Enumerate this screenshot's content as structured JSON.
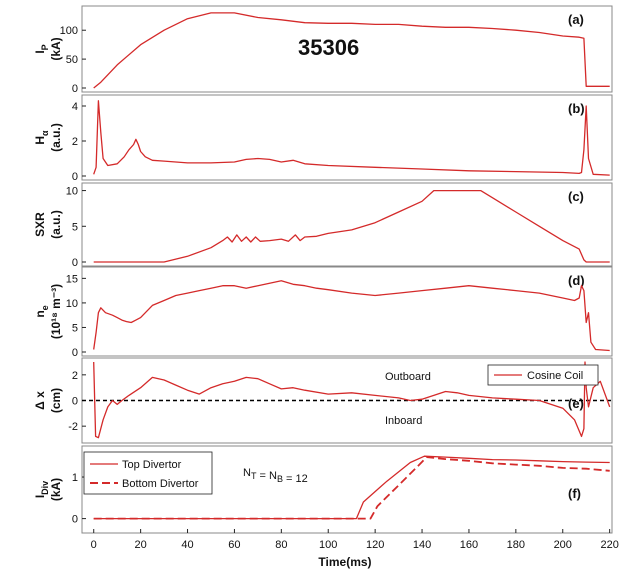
{
  "figure": {
    "shot_number": "35306",
    "xlabel": "Time(ms)",
    "x_ticks": [
      0,
      20,
      40,
      60,
      80,
      100,
      120,
      140,
      160,
      180,
      200,
      220
    ],
    "xlim": [
      -5,
      221
    ],
    "colors": {
      "trace": "#d42a2a",
      "axis": "#222222",
      "frame": "#888888",
      "zero_line": "#000000"
    }
  },
  "chart_data": [
    {
      "type": "line",
      "panel": "(a)",
      "ylabel_main": "I",
      "ylabel_sub": "P",
      "ylabel_unit": "(kA)",
      "yticks": [
        0,
        50,
        100
      ],
      "ylim": [
        0,
        135
      ],
      "series": [
        {
          "values": [
            [
              0,
              0
            ],
            [
              3,
              10
            ],
            [
              10,
              40
            ],
            [
              20,
              75
            ],
            [
              30,
              100
            ],
            [
              40,
              120
            ],
            [
              50,
              130
            ],
            [
              60,
              130
            ],
            [
              70,
              122
            ],
            [
              80,
              118
            ],
            [
              90,
              113
            ],
            [
              100,
              112
            ],
            [
              110,
              112
            ],
            [
              120,
              110
            ],
            [
              130,
              110
            ],
            [
              140,
              107
            ],
            [
              150,
              105
            ],
            [
              160,
              105
            ],
            [
              170,
              103
            ],
            [
              180,
              100
            ],
            [
              190,
              96
            ],
            [
              200,
              90
            ],
            [
              207,
              88
            ],
            [
              209,
              86
            ],
            [
              210,
              3
            ],
            [
              220,
              3
            ]
          ]
        }
      ]
    },
    {
      "type": "line",
      "panel": "(b)",
      "ylabel_main": "H",
      "ylabel_sub": "α",
      "ylabel_unit": "(a.u.)",
      "yticks": [
        0,
        2,
        4
      ],
      "ylim": [
        0,
        4.4
      ],
      "series": [
        {
          "values": [
            [
              0,
              0.1
            ],
            [
              1,
              0.5
            ],
            [
              2,
              4.3
            ],
            [
              3,
              2.5
            ],
            [
              4,
              1.0
            ],
            [
              6,
              0.6
            ],
            [
              10,
              0.7
            ],
            [
              13,
              1.1
            ],
            [
              15,
              1.5
            ],
            [
              17,
              1.8
            ],
            [
              18,
              2.1
            ],
            [
              19,
              1.8
            ],
            [
              20,
              1.4
            ],
            [
              22,
              1.1
            ],
            [
              25,
              0.9
            ],
            [
              30,
              0.85
            ],
            [
              40,
              0.75
            ],
            [
              50,
              0.75
            ],
            [
              60,
              0.8
            ],
            [
              65,
              0.95
            ],
            [
              70,
              1.0
            ],
            [
              75,
              0.95
            ],
            [
              80,
              0.8
            ],
            [
              85,
              0.9
            ],
            [
              90,
              0.7
            ],
            [
              100,
              0.6
            ],
            [
              120,
              0.5
            ],
            [
              140,
              0.4
            ],
            [
              160,
              0.3
            ],
            [
              180,
              0.25
            ],
            [
              200,
              0.2
            ],
            [
              207,
              0.15
            ],
            [
              208,
              0.2
            ],
            [
              209,
              1.5
            ],
            [
              210,
              4.0
            ],
            [
              211,
              1.0
            ],
            [
              213,
              0.1
            ],
            [
              220,
              0.05
            ]
          ]
        }
      ]
    },
    {
      "type": "line",
      "panel": "(c)",
      "ylabel_main": "SXR",
      "ylabel_sub": "",
      "ylabel_unit": "(a.u.)",
      "yticks": [
        0,
        5,
        10
      ],
      "ylim": [
        0,
        10.5
      ],
      "series": [
        {
          "values": [
            [
              0,
              0
            ],
            [
              20,
              0
            ],
            [
              30,
              0
            ],
            [
              40,
              0.8
            ],
            [
              50,
              2.0
            ],
            [
              55,
              3.0
            ],
            [
              57,
              3.5
            ],
            [
              59,
              2.8
            ],
            [
              61,
              3.8
            ],
            [
              63,
              2.9
            ],
            [
              65,
              3.5
            ],
            [
              67,
              2.8
            ],
            [
              69,
              3.5
            ],
            [
              71,
              2.9
            ],
            [
              75,
              3.0
            ],
            [
              80,
              3.2
            ],
            [
              83,
              2.9
            ],
            [
              86,
              3.8
            ],
            [
              88,
              3.0
            ],
            [
              90,
              3.5
            ],
            [
              95,
              3.6
            ],
            [
              100,
              4.0
            ],
            [
              110,
              4.5
            ],
            [
              120,
              5.5
            ],
            [
              130,
              7.0
            ],
            [
              140,
              8.5
            ],
            [
              145,
              10
            ],
            [
              150,
              10
            ],
            [
              160,
              10
            ],
            [
              165,
              10
            ],
            [
              170,
              9.0
            ],
            [
              180,
              7.0
            ],
            [
              190,
              5.0
            ],
            [
              200,
              3.0
            ],
            [
              207,
              1.8
            ],
            [
              209,
              0.3
            ],
            [
              210,
              0
            ],
            [
              220,
              0
            ]
          ]
        }
      ]
    },
    {
      "type": "line",
      "panel": "(d)",
      "ylabel_main": "n",
      "ylabel_sub": "e",
      "ylabel_unit": "(10¹⁸ m⁻³)",
      "yticks": [
        0,
        5,
        10,
        15
      ],
      "ylim": [
        0,
        16.5
      ],
      "series": [
        {
          "values": [
            [
              0,
              0.5
            ],
            [
              1,
              4
            ],
            [
              2,
              8
            ],
            [
              3,
              9
            ],
            [
              5,
              8
            ],
            [
              8,
              7.5
            ],
            [
              10,
              7
            ],
            [
              12,
              6.5
            ],
            [
              14,
              6.2
            ],
            [
              16,
              6.0
            ],
            [
              18,
              6.5
            ],
            [
              20,
              7.0
            ],
            [
              25,
              9.5
            ],
            [
              30,
              10.5
            ],
            [
              35,
              11.5
            ],
            [
              40,
              12
            ],
            [
              45,
              12.5
            ],
            [
              50,
              13
            ],
            [
              55,
              13.5
            ],
            [
              60,
              13.5
            ],
            [
              65,
              13
            ],
            [
              70,
              13.5
            ],
            [
              75,
              14
            ],
            [
              80,
              14.5
            ],
            [
              85,
              13.8
            ],
            [
              90,
              13.5
            ],
            [
              95,
              13
            ],
            [
              100,
              12.7
            ],
            [
              110,
              12
            ],
            [
              120,
              11.5
            ],
            [
              130,
              12
            ],
            [
              140,
              12.5
            ],
            [
              150,
              13
            ],
            [
              160,
              13.5
            ],
            [
              170,
              13
            ],
            [
              180,
              12.5
            ],
            [
              190,
              12
            ],
            [
              200,
              11
            ],
            [
              205,
              10.5
            ],
            [
              207,
              11
            ],
            [
              208,
              13.5
            ],
            [
              209,
              12.5
            ],
            [
              210,
              6.0
            ],
            [
              211,
              8.0
            ],
            [
              212,
              2.0
            ],
            [
              214,
              0.5
            ],
            [
              220,
              0.3
            ]
          ]
        }
      ]
    },
    {
      "type": "line",
      "panel": "(e)",
      "ylabel_main": "Δ x",
      "ylabel_sub": "",
      "ylabel_unit": "(cm)",
      "yticks": [
        -2,
        0,
        2
      ],
      "ylim": [
        -3,
        3
      ],
      "legend": "Cosine Coil",
      "annotation_top": "Outboard",
      "annotation_bottom": "Inboard",
      "zero_line": true,
      "series": [
        {
          "name": "Cosine Coil",
          "values": [
            [
              0,
              3
            ],
            [
              0.8,
              -2.8
            ],
            [
              2,
              -2.9
            ],
            [
              4,
              -1.5
            ],
            [
              6,
              -0.5
            ],
            [
              8,
              0
            ],
            [
              10,
              -0.3
            ],
            [
              12,
              0
            ],
            [
              15,
              0.4
            ],
            [
              20,
              1.0
            ],
            [
              25,
              1.8
            ],
            [
              30,
              1.6
            ],
            [
              35,
              1.2
            ],
            [
              40,
              0.8
            ],
            [
              45,
              0.5
            ],
            [
              50,
              1.0
            ],
            [
              55,
              1.3
            ],
            [
              60,
              1.5
            ],
            [
              65,
              1.8
            ],
            [
              70,
              1.7
            ],
            [
              75,
              1.3
            ],
            [
              80,
              0.9
            ],
            [
              85,
              1.0
            ],
            [
              90,
              0.8
            ],
            [
              100,
              0.5
            ],
            [
              110,
              0.6
            ],
            [
              120,
              0.4
            ],
            [
              130,
              0.2
            ],
            [
              135,
              0
            ],
            [
              140,
              0.1
            ],
            [
              145,
              0.4
            ],
            [
              150,
              0.7
            ],
            [
              155,
              0.6
            ],
            [
              160,
              0.4
            ],
            [
              170,
              0.2
            ],
            [
              180,
              0.1
            ],
            [
              190,
              0
            ],
            [
              200,
              -0.6
            ],
            [
              205,
              -1.5
            ],
            [
              208,
              -2.8
            ],
            [
              209,
              -2.2
            ],
            [
              209.5,
              3
            ],
            [
              210,
              1.0
            ],
            [
              211,
              -0.5
            ],
            [
              213,
              1.0
            ],
            [
              216,
              1.5
            ],
            [
              220,
              -0.5
            ]
          ]
        }
      ]
    },
    {
      "type": "line",
      "panel": "(f)",
      "ylabel_main": "I",
      "ylabel_sub": "Div",
      "ylabel_unit": "(kA)",
      "yticks": [
        0,
        1
      ],
      "ylim": [
        -0.25,
        1.65
      ],
      "annotation": "N_T = N_B = 12",
      "series": [
        {
          "name": "Top Divertor",
          "dash": "solid",
          "values": [
            [
              0,
              0
            ],
            [
              112,
              0
            ],
            [
              115,
              0.4
            ],
            [
              125,
              0.9
            ],
            [
              135,
              1.35
            ],
            [
              141,
              1.5
            ],
            [
              150,
              1.48
            ],
            [
              160,
              1.45
            ],
            [
              170,
              1.42
            ],
            [
              180,
              1.41
            ],
            [
              190,
              1.39
            ],
            [
              200,
              1.37
            ],
            [
              210,
              1.36
            ],
            [
              220,
              1.35
            ]
          ]
        },
        {
          "name": "Bottom Divertor",
          "dash": "dashed",
          "values": [
            [
              0,
              0
            ],
            [
              118,
              0
            ],
            [
              121,
              0.3
            ],
            [
              130,
              0.8
            ],
            [
              138,
              1.25
            ],
            [
              142,
              1.48
            ],
            [
              150,
              1.43
            ],
            [
              160,
              1.39
            ],
            [
              170,
              1.33
            ],
            [
              180,
              1.3
            ],
            [
              190,
              1.27
            ],
            [
              200,
              1.22
            ],
            [
              210,
              1.2
            ],
            [
              220,
              1.15
            ]
          ]
        }
      ]
    }
  ]
}
